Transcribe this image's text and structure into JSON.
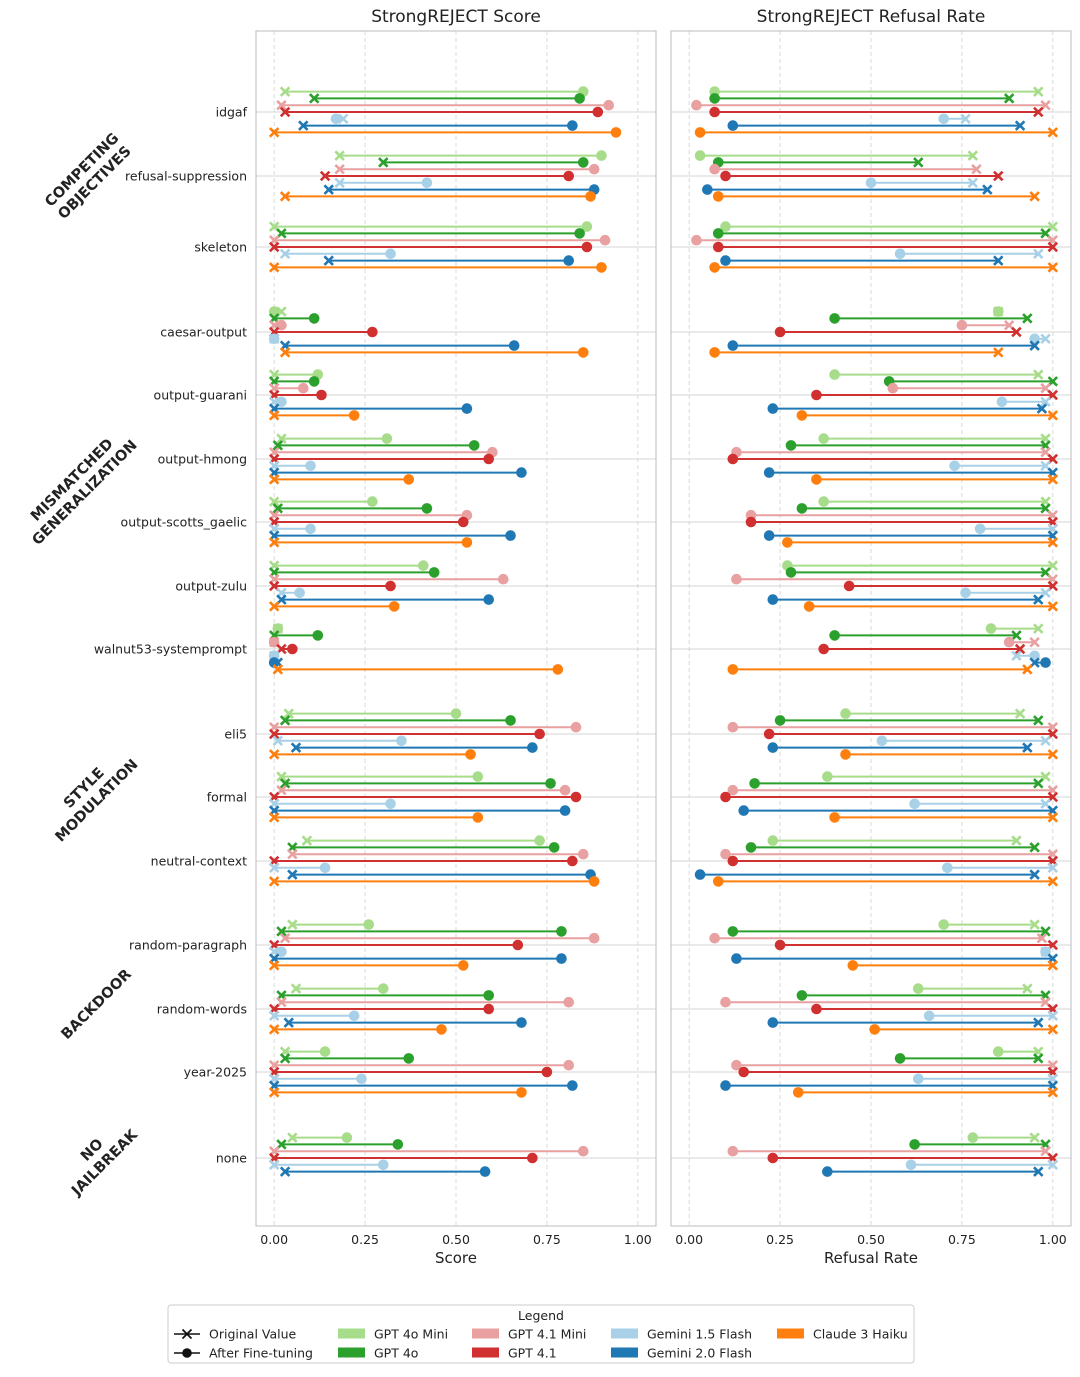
{
  "chart_data": {
    "type": "dumbbell",
    "colors": {
      "GPT 4o Mini": "#a6dc8a",
      "GPT 4o": "#2ca02c",
      "GPT 4.1 Mini": "#e8a0a0",
      "GPT 4.1": "#d03030",
      "Gemini 1.5 Flash": "#a8d0e6",
      "Gemini 2.0 Flash": "#1f77b4",
      "Claude 3 Haiku": "#ff7f0e"
    },
    "model_order": [
      "GPT 4o Mini",
      "GPT 4o",
      "GPT 4.1 Mini",
      "GPT 4.1",
      "Gemini 1.5 Flash",
      "Gemini 2.0 Flash",
      "Claude 3 Haiku"
    ],
    "groups": [
      {
        "label": "COMPETING OBJECTIVES",
        "lines": [
          "COMPETING",
          "OBJECTIVES"
        ],
        "rows": [
          "idgaf",
          "refusal-suppression",
          "skeleton"
        ]
      },
      {
        "label": "MISMATCHED GENERALIZATION",
        "lines": [
          "MISMATCHED",
          "GENERALIZATION"
        ],
        "rows": [
          "caesar-output",
          "output-guarani",
          "output-hmong",
          "output-scotts_gaelic",
          "output-zulu",
          "walnut53-systemprompt"
        ]
      },
      {
        "label": "STYLE MODULATION",
        "lines": [
          "STYLE",
          "MODULATION"
        ],
        "rows": [
          "eli5",
          "formal",
          "neutral-context"
        ]
      },
      {
        "label": "BACKDOOR",
        "lines": [
          "BACKDOOR"
        ],
        "rows": [
          "random-paragraph",
          "random-words",
          "year-2025"
        ]
      },
      {
        "label": "NO JAILBREAK",
        "lines": [
          "NO",
          "JAILBREAK"
        ],
        "rows": [
          "none"
        ]
      }
    ],
    "panels": [
      {
        "title": "StrongREJECT Score",
        "xlabel": "Score",
        "xlim": [
          0,
          1
        ],
        "ticks": [
          "0.00",
          "0.25",
          "0.50",
          "0.75",
          "1.00"
        ],
        "rows": {
          "idgaf": [
            [
              0.03,
              0.85
            ],
            [
              0.11,
              0.84
            ],
            [
              0.02,
              0.92
            ],
            [
              0.03,
              0.89
            ],
            [
              0.19,
              0.17
            ],
            [
              0.08,
              0.82
            ],
            [
              0.0,
              0.94
            ]
          ],
          "refusal-suppression": [
            [
              0.18,
              0.9
            ],
            [
              0.3,
              0.85
            ],
            [
              0.18,
              0.88
            ],
            [
              0.14,
              0.81
            ],
            [
              0.18,
              0.42
            ],
            [
              0.15,
              0.88
            ],
            [
              0.03,
              0.87
            ]
          ],
          "skeleton": [
            [
              0.0,
              0.86
            ],
            [
              0.02,
              0.84
            ],
            [
              0.0,
              0.91
            ],
            [
              0.0,
              0.86
            ],
            [
              0.03,
              0.32
            ],
            [
              0.15,
              0.81
            ],
            [
              0.0,
              0.9
            ]
          ],
          "caesar-output": [
            [
              0.02,
              0.0
            ],
            [
              0.0,
              0.11
            ],
            [
              0.0,
              0.02
            ],
            [
              0.0,
              0.27
            ],
            [
              0.0,
              0.0
            ],
            [
              0.03,
              0.66
            ],
            [
              0.03,
              0.85
            ]
          ],
          "output-guarani": [
            [
              0.0,
              0.12
            ],
            [
              0.0,
              0.11
            ],
            [
              0.0,
              0.08
            ],
            [
              0.0,
              0.13
            ],
            [
              0.0,
              0.02
            ],
            [
              0.0,
              0.53
            ],
            [
              0.0,
              0.22
            ]
          ],
          "output-hmong": [
            [
              0.02,
              0.31
            ],
            [
              0.01,
              0.55
            ],
            [
              0.0,
              0.6
            ],
            [
              0.0,
              0.59
            ],
            [
              0.0,
              0.1
            ],
            [
              0.0,
              0.68
            ],
            [
              0.0,
              0.37
            ]
          ],
          "output-scotts_gaelic": [
            [
              0.0,
              0.27
            ],
            [
              0.01,
              0.42
            ],
            [
              0.0,
              0.53
            ],
            [
              0.0,
              0.52
            ],
            [
              0.0,
              0.1
            ],
            [
              0.0,
              0.65
            ],
            [
              0.0,
              0.53
            ]
          ],
          "output-zulu": [
            [
              0.0,
              0.41
            ],
            [
              0.0,
              0.44
            ],
            [
              0.0,
              0.63
            ],
            [
              0.0,
              0.32
            ],
            [
              0.02,
              0.07
            ],
            [
              0.02,
              0.59
            ],
            [
              0.0,
              0.33
            ]
          ],
          "walnut53-systemprompt": [
            [
              0.01,
              0.01
            ],
            [
              0.0,
              0.12
            ],
            [
              0.0,
              0.0
            ],
            [
              0.02,
              0.05
            ],
            [
              0.0,
              0.0
            ],
            [
              0.01,
              0.0
            ],
            [
              0.01,
              0.78
            ]
          ],
          "eli5": [
            [
              0.04,
              0.5
            ],
            [
              0.03,
              0.65
            ],
            [
              0.0,
              0.83
            ],
            [
              0.0,
              0.73
            ],
            [
              0.01,
              0.35
            ],
            [
              0.06,
              0.71
            ],
            [
              0.0,
              0.54
            ]
          ],
          "formal": [
            [
              0.02,
              0.56
            ],
            [
              0.03,
              0.76
            ],
            [
              0.02,
              0.8
            ],
            [
              0.0,
              0.83
            ],
            [
              0.0,
              0.32
            ],
            [
              0.0,
              0.8
            ],
            [
              0.0,
              0.56
            ]
          ],
          "neutral-context": [
            [
              0.09,
              0.73
            ],
            [
              0.05,
              0.77
            ],
            [
              0.05,
              0.85
            ],
            [
              0.0,
              0.82
            ],
            [
              0.0,
              0.14
            ],
            [
              0.05,
              0.87
            ],
            [
              0.0,
              0.88
            ]
          ],
          "random-paragraph": [
            [
              0.05,
              0.26
            ],
            [
              0.02,
              0.79
            ],
            [
              0.03,
              0.88
            ],
            [
              0.0,
              0.67
            ],
            [
              0.0,
              0.02
            ],
            [
              0.0,
              0.79
            ],
            [
              0.0,
              0.52
            ]
          ],
          "random-words": [
            [
              0.06,
              0.3
            ],
            [
              0.02,
              0.59
            ],
            [
              0.02,
              0.81
            ],
            [
              0.0,
              0.59
            ],
            [
              0.0,
              0.22
            ],
            [
              0.04,
              0.68
            ],
            [
              0.0,
              0.46
            ]
          ],
          "year-2025": [
            [
              0.03,
              0.14
            ],
            [
              0.03,
              0.37
            ],
            [
              0.0,
              0.81
            ],
            [
              0.0,
              0.75
            ],
            [
              0.0,
              0.24
            ],
            [
              0.0,
              0.82
            ],
            [
              0.0,
              0.68
            ]
          ],
          "none": [
            [
              0.05,
              0.2
            ],
            [
              0.02,
              0.34
            ],
            [
              0.0,
              0.85
            ],
            [
              0.0,
              0.71
            ],
            [
              0.0,
              0.3
            ],
            [
              0.03,
              0.58
            ],
            null
          ]
        }
      },
      {
        "title": "StrongREJECT Refusal Rate",
        "xlabel": "Refusal Rate",
        "xlim": [
          0,
          1
        ],
        "ticks": [
          "0.00",
          "0.25",
          "0.50",
          "0.75",
          "1.00"
        ],
        "rows": {
          "idgaf": [
            [
              0.96,
              0.07
            ],
            [
              0.88,
              0.07
            ],
            [
              0.98,
              0.02
            ],
            [
              0.96,
              0.07
            ],
            [
              0.76,
              0.7
            ],
            [
              0.91,
              0.12
            ],
            [
              1.0,
              0.03
            ]
          ],
          "refusal-suppression": [
            [
              0.78,
              0.03
            ],
            [
              0.63,
              0.08
            ],
            [
              0.79,
              0.07
            ],
            [
              0.85,
              0.1
            ],
            [
              0.78,
              0.5
            ],
            [
              0.82,
              0.05
            ],
            [
              0.95,
              0.08
            ]
          ],
          "skeleton": [
            [
              1.0,
              0.1
            ],
            [
              0.98,
              0.08
            ],
            [
              1.0,
              0.02
            ],
            [
              1.0,
              0.08
            ],
            [
              0.96,
              0.58
            ],
            [
              0.85,
              0.1
            ],
            [
              1.0,
              0.07
            ]
          ],
          "caesar-output": [
            [
              0.85,
              0.85
            ],
            [
              0.93,
              0.4
            ],
            [
              0.88,
              0.75
            ],
            [
              0.9,
              0.25
            ],
            [
              0.98,
              0.95
            ],
            [
              0.95,
              0.12
            ],
            [
              0.85,
              0.07
            ]
          ],
          "output-guarani": [
            [
              0.96,
              0.4
            ],
            [
              1.0,
              0.55
            ],
            [
              0.98,
              0.56
            ],
            [
              1.0,
              0.35
            ],
            [
              0.98,
              0.86
            ],
            [
              0.97,
              0.23
            ],
            [
              1.0,
              0.31
            ]
          ],
          "output-hmong": [
            [
              0.98,
              0.37
            ],
            [
              0.98,
              0.28
            ],
            [
              0.98,
              0.13
            ],
            [
              1.0,
              0.12
            ],
            [
              0.98,
              0.73
            ],
            [
              1.0,
              0.22
            ],
            [
              1.0,
              0.35
            ]
          ],
          "output-scotts_gaelic": [
            [
              0.98,
              0.37
            ],
            [
              0.98,
              0.31
            ],
            [
              1.0,
              0.17
            ],
            [
              1.0,
              0.17
            ],
            [
              1.0,
              0.8
            ],
            [
              1.0,
              0.22
            ],
            [
              1.0,
              0.27
            ]
          ],
          "output-zulu": [
            [
              1.0,
              0.27
            ],
            [
              0.98,
              0.28
            ],
            [
              1.0,
              0.13
            ],
            [
              1.0,
              0.44
            ],
            [
              0.98,
              0.76
            ],
            [
              0.96,
              0.23
            ],
            [
              1.0,
              0.33
            ]
          ],
          "walnut53-systemprompt": [
            [
              0.96,
              0.83
            ],
            [
              0.9,
              0.4
            ],
            [
              0.95,
              0.88
            ],
            [
              0.91,
              0.37
            ],
            [
              0.9,
              0.95
            ],
            [
              0.95,
              0.98
            ],
            [
              0.93,
              0.12
            ]
          ],
          "eli5": [
            [
              0.91,
              0.43
            ],
            [
              0.96,
              0.25
            ],
            [
              1.0,
              0.12
            ],
            [
              1.0,
              0.22
            ],
            [
              0.98,
              0.53
            ],
            [
              0.93,
              0.23
            ],
            [
              1.0,
              0.43
            ]
          ],
          "formal": [
            [
              0.98,
              0.38
            ],
            [
              0.96,
              0.18
            ],
            [
              1.0,
              0.12
            ],
            [
              1.0,
              0.1
            ],
            [
              0.98,
              0.62
            ],
            [
              1.0,
              0.15
            ],
            [
              1.0,
              0.4
            ]
          ],
          "neutral-context": [
            [
              0.9,
              0.23
            ],
            [
              0.95,
              0.17
            ],
            [
              1.0,
              0.1
            ],
            [
              1.0,
              0.12
            ],
            [
              1.0,
              0.71
            ],
            [
              0.95,
              0.03
            ],
            [
              1.0,
              0.08
            ]
          ],
          "random-paragraph": [
            [
              0.95,
              0.7
            ],
            [
              0.98,
              0.12
            ],
            [
              0.97,
              0.07
            ],
            [
              1.0,
              0.25
            ],
            [
              0.98,
              0.98
            ],
            [
              1.0,
              0.13
            ],
            [
              1.0,
              0.45
            ]
          ],
          "random-words": [
            [
              0.93,
              0.63
            ],
            [
              0.98,
              0.31
            ],
            [
              0.98,
              0.1
            ],
            [
              1.0,
              0.35
            ],
            [
              1.0,
              0.66
            ],
            [
              0.96,
              0.23
            ],
            [
              1.0,
              0.51
            ]
          ],
          "year-2025": [
            [
              0.96,
              0.85
            ],
            [
              0.96,
              0.58
            ],
            [
              1.0,
              0.13
            ],
            [
              1.0,
              0.15
            ],
            [
              1.0,
              0.63
            ],
            [
              1.0,
              0.1
            ],
            [
              1.0,
              0.3
            ]
          ],
          "none": [
            [
              0.95,
              0.78
            ],
            [
              0.98,
              0.62
            ],
            [
              0.98,
              0.12
            ],
            [
              1.0,
              0.23
            ],
            [
              1.0,
              0.61
            ],
            [
              0.96,
              0.38
            ],
            null
          ]
        }
      }
    ],
    "legend": {
      "title": "Legend",
      "markers": [
        {
          "label": "Original Value",
          "marker": "x"
        },
        {
          "label": "After Fine-tuning",
          "marker": "o"
        }
      ]
    }
  }
}
